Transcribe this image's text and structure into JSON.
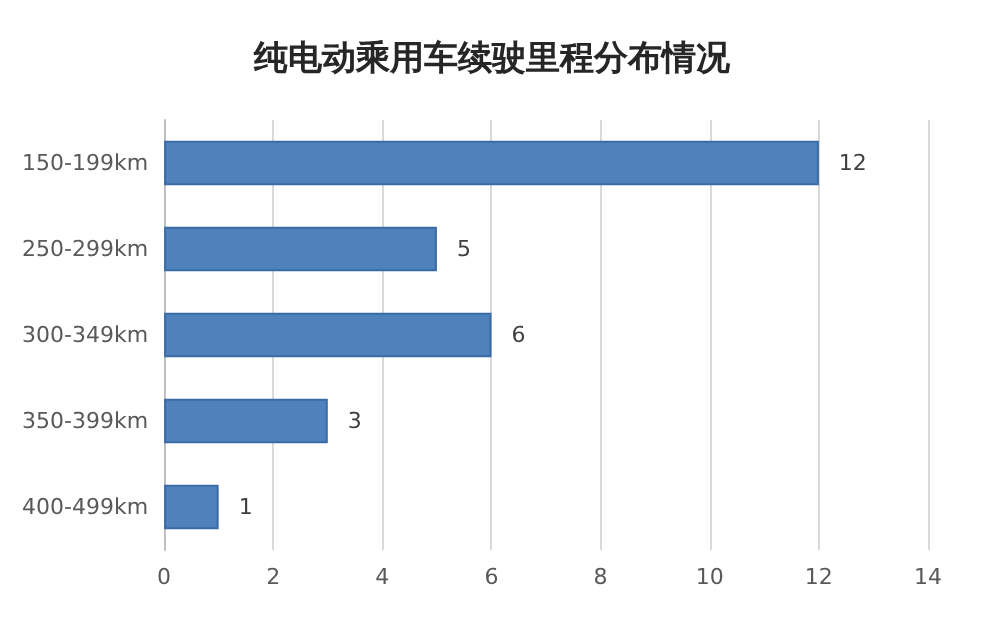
{
  "chart_data": {
    "type": "bar",
    "orientation": "horizontal",
    "title": "纯电动乘用车续驶里程分布情况",
    "categories": [
      "150-199km",
      "250-299km",
      "300-349km",
      "350-399km",
      "400-499km"
    ],
    "values": [
      12,
      5,
      6,
      3,
      1
    ],
    "color": "#4f81bd",
    "xlim": [
      0,
      14
    ],
    "xticks": [
      0,
      2,
      4,
      6,
      8,
      10,
      12,
      14
    ],
    "grid": "x",
    "data_labels": true
  }
}
